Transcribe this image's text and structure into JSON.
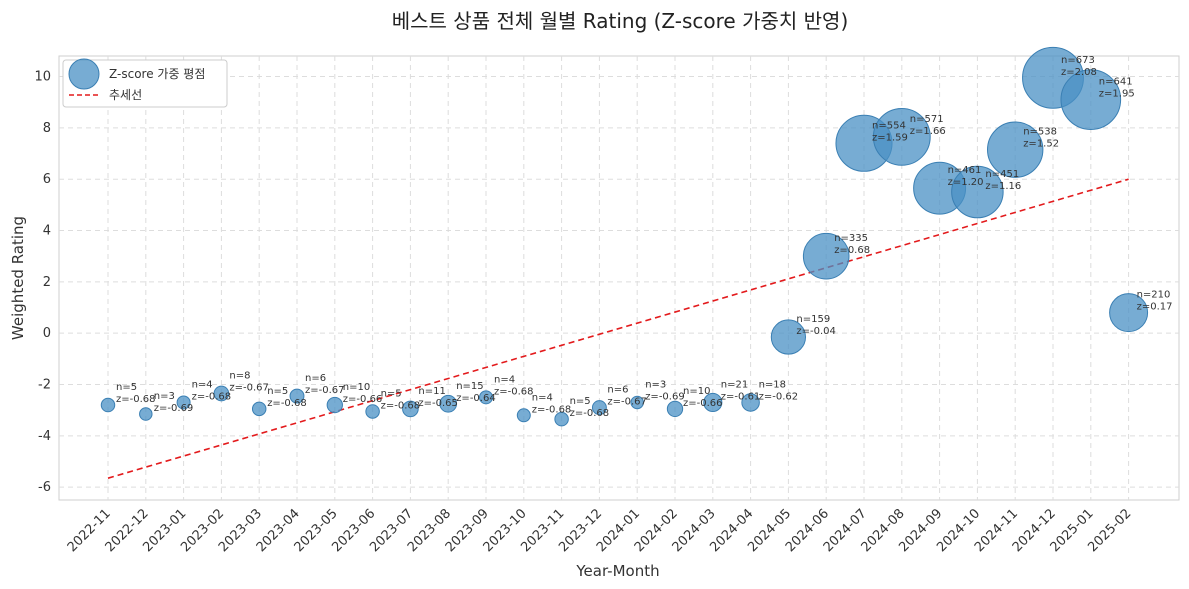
{
  "chart_data": {
    "type": "scatter",
    "title": "베스트 상품 전체 월별 Rating (Z-score 가중치 반영)",
    "xlabel": "Year-Month",
    "ylabel": "Weighted Rating",
    "ylim": [
      -6.5,
      10.8
    ],
    "yticks": [
      -6,
      -4,
      -2,
      0,
      2,
      4,
      6,
      8,
      10
    ],
    "ytick_labels": [
      "-6",
      "-4",
      "-2",
      "0",
      "2",
      "4",
      "6",
      "8",
      "10"
    ],
    "grid": true,
    "legend_position": "top-left",
    "categories": [
      "2022-11",
      "2022-12",
      "2023-01",
      "2023-02",
      "2023-03",
      "2023-04",
      "2023-05",
      "2023-06",
      "2023-07",
      "2023-08",
      "2023-09",
      "2023-10",
      "2023-11",
      "2023-12",
      "2024-01",
      "2024-02",
      "2024-03",
      "2024-04",
      "2024-05",
      "2024-06",
      "2024-07",
      "2024-08",
      "2024-09",
      "2024-10",
      "2024-11",
      "2024-12",
      "2025-01",
      "2025-02"
    ],
    "series": [
      {
        "name": "Z-score 가중 평점",
        "kind": "bubble",
        "color": "#4a90c4",
        "y": [
          -2.8,
          -3.15,
          -2.7,
          -2.35,
          -2.95,
          -2.45,
          -2.8,
          -3.05,
          -2.95,
          -2.75,
          -2.5,
          -3.2,
          -3.35,
          -2.9,
          -2.7,
          -2.95,
          -2.7,
          -2.7,
          -0.15,
          3.0,
          7.4,
          7.65,
          5.65,
          5.5,
          7.15,
          9.95,
          9.1,
          0.8
        ],
        "n": [
          5,
          3,
          4,
          8,
          5,
          6,
          10,
          5,
          11,
          15,
          4,
          4,
          5,
          6,
          3,
          10,
          21,
          18,
          159,
          335,
          554,
          571,
          461,
          451,
          538,
          673,
          641,
          210
        ],
        "n_labels": [
          "n=5",
          "n=3",
          "n=4",
          "n=8",
          "n=5",
          "n=6",
          "n=10",
          "n=5",
          "n=11",
          "n=15",
          "n=4",
          "n=4",
          "n=5",
          "n=6",
          "n=3",
          "n=10",
          "n=21",
          "n=18",
          "n=159",
          "n=335",
          "n=554",
          "n=571",
          "n=461",
          "n=451",
          "n=538",
          "n=673",
          "n=641",
          "n=210"
        ],
        "z_labels": [
          "z=-0.68",
          "z=-0.69",
          "z=-0.68",
          "z=-0.67",
          "z=-0.68",
          "z=-0.67",
          "z=-0.66",
          "z=-0.68",
          "z=-0.65",
          "z=-0.64",
          "z=-0.68",
          "z=-0.68",
          "z=-0.68",
          "z=-0.67",
          "z=-0.69",
          "z=-0.66",
          "z=-0.61",
          "z=-0.62",
          "z=-0.04",
          "z=0.68",
          "z=1.59",
          "z=1.66",
          "z=1.20",
          "z=1.16",
          "z=1.52",
          "z=2.08",
          "z=1.95",
          "z=0.17"
        ]
      },
      {
        "name": "추세선",
        "kind": "trend-line",
        "color": "#e31a1c",
        "style": "dashed",
        "start": {
          "category": "2022-11",
          "y": -5.65
        },
        "end": {
          "category": "2025-02",
          "y": 6.0
        }
      }
    ]
  }
}
